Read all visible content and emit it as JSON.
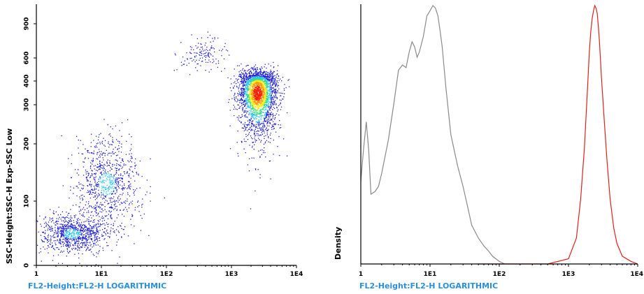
{
  "colors": {
    "axis_title_x": "#2a8fe0",
    "axis": "#000000",
    "scatter_low": "#1f1fd8",
    "scatter_mid": "#29c6f0",
    "scatter_high": "#ff1a00",
    "histogram_gray": "#8a8a8a",
    "histogram_red": "#e0201a"
  },
  "chart_data": [
    {
      "type": "scatter",
      "x_scale": "log",
      "xlim": [
        1,
        10000
      ],
      "ylim": [
        0,
        1000
      ],
      "xlabel": "FL2-Height:FL2-H LOGARITHMIC",
      "ylabel": "SSC-Height:SSC-H Exp-SSC Low",
      "x_ticks": [
        {
          "value": 1,
          "label": "1"
        },
        {
          "value": 10,
          "label": "1E1"
        },
        {
          "value": 100,
          "label": "1E2"
        },
        {
          "value": 1000,
          "label": "1E3"
        },
        {
          "value": 10000,
          "label": "1E4"
        }
      ],
      "y_ticks": [
        {
          "value": 0,
          "label": "0"
        },
        {
          "value": 100,
          "label": "100"
        },
        {
          "value": 200,
          "label": "200"
        },
        {
          "value": 300,
          "label": "300"
        },
        {
          "value": 400,
          "label": "400"
        },
        {
          "value": 600,
          "label": "600"
        },
        {
          "value": 900,
          "label": "900"
        }
      ],
      "populations": [
        {
          "x_center": 3.5,
          "y_center": 50,
          "x_spread_log": 0.25,
          "y_spread": 15,
          "density": "medium"
        },
        {
          "x_center": 12,
          "y_center": 130,
          "x_spread_log": 0.25,
          "y_spread": 40,
          "density": "medium"
        },
        {
          "x_center": 350,
          "y_center": 630,
          "x_spread_log": 0.2,
          "y_spread": 70,
          "density": "low"
        },
        {
          "x_center": 2500,
          "y_center": 350,
          "x_spread_log": 0.15,
          "y_spread": 70,
          "density": "high"
        }
      ]
    },
    {
      "type": "line",
      "x_scale": "log",
      "xlim": [
        1,
        10000
      ],
      "xlabel": "FL2-Height:FL2-H LOGARITHMIC",
      "ylabel": "Density",
      "x_ticks": [
        {
          "value": 1,
          "label": "1"
        },
        {
          "value": 10,
          "label": "1E1"
        },
        {
          "value": 100,
          "label": "1E2"
        },
        {
          "value": 1000,
          "label": "1E3"
        },
        {
          "value": 10000,
          "label": "1E4"
        }
      ],
      "series": [
        {
          "color": "gray",
          "x": [
            1,
            1.1,
            1.2,
            1.3,
            1.4,
            1.6,
            1.8,
            2.0,
            2.5,
            3.0,
            3.5,
            4.0,
            4.5,
            5.0,
            5.5,
            6.0,
            6.5,
            7.0,
            8.0,
            9.0,
            10.0,
            11.0,
            12.0,
            13.0,
            14.0,
            15.0,
            17.0,
            20.0,
            25.0,
            30.0,
            35.0,
            40.0,
            50.0,
            60.0,
            70.0,
            80.0,
            100.0,
            120.0
          ],
          "y": [
            0.32,
            0.45,
            0.55,
            0.44,
            0.27,
            0.28,
            0.3,
            0.35,
            0.48,
            0.62,
            0.75,
            0.77,
            0.76,
            0.82,
            0.86,
            0.84,
            0.8,
            0.82,
            0.88,
            0.96,
            0.98,
            1.0,
            0.99,
            0.96,
            0.9,
            0.84,
            0.68,
            0.5,
            0.38,
            0.3,
            0.22,
            0.15,
            0.1,
            0.07,
            0.05,
            0.03,
            0.01,
            0.0
          ]
        },
        {
          "color": "red",
          "x": [
            50,
            100,
            200,
            500,
            1000,
            1300,
            1500,
            1700,
            1900,
            2000,
            2100,
            2200,
            2300,
            2400,
            2500,
            2600,
            2700,
            2800,
            3000,
            3300,
            3600,
            4000,
            4500,
            5000,
            6000,
            8000,
            10000
          ],
          "y": [
            0.0,
            0.0,
            0.0,
            0.0,
            0.02,
            0.1,
            0.25,
            0.45,
            0.7,
            0.82,
            0.9,
            0.95,
            0.98,
            1.0,
            0.99,
            0.97,
            0.92,
            0.86,
            0.72,
            0.55,
            0.4,
            0.25,
            0.14,
            0.08,
            0.03,
            0.01,
            0.0
          ]
        }
      ]
    }
  ]
}
